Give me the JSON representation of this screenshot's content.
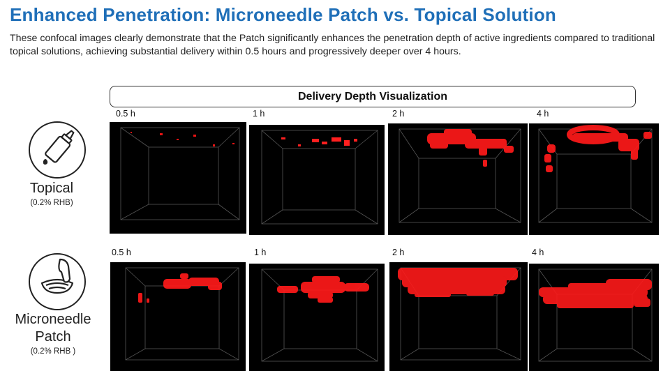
{
  "title": "Enhanced Penetration: Microneedle Patch vs. Topical Solution",
  "description": "These confocal images clearly demonstrate that the Patch significantly enhances the penetration depth of active ingredients compared to traditional topical solutions, achieving substantial delivery within 0.5 hours and progressively deeper over 4 hours.",
  "visualization_header": "Delivery Depth Visualization",
  "rows": [
    {
      "name": "Topical",
      "concentration": "(0.2% RHB)",
      "icon": "topical-bottle-icon",
      "times": [
        "0.5 h",
        "1 h",
        "2 h",
        "4 h"
      ]
    },
    {
      "name": "Microneedle Patch",
      "name_line1": "Microneedle",
      "name_line2": "Patch",
      "concentration": "(0.2% RHB )",
      "icon": "microneedle-patch-icon",
      "times": [
        "0.5 h",
        "1 h",
        "2 h",
        "4 h"
      ]
    }
  ],
  "colors": {
    "title": "#1f6fb8",
    "signal": "#ff1a1a",
    "panel_background": "#000000"
  }
}
